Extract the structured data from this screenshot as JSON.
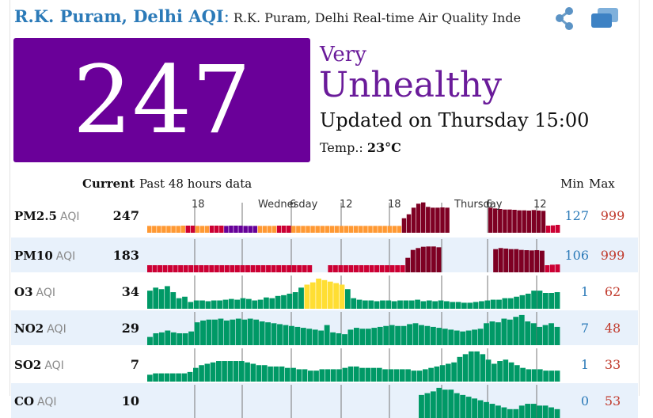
{
  "header": {
    "title": "R.K. Puram, Delhi AQI",
    "colon": ":",
    "subtitle": "R.K. Puram, Delhi Real-time Air Quality Index"
  },
  "icons": {
    "share": "share-icon",
    "window": "windows-icon"
  },
  "summary": {
    "aqi": "247",
    "level_line1": "Very",
    "level_line2": "Unhealthy",
    "updated": "Updated on Thursday 15:00",
    "temp_label": "Temp.:",
    "temp_value": "23°C",
    "box_color": "#6a0099"
  },
  "columns": {
    "current": "Current",
    "past": "Past 48 hours data",
    "min": "Min",
    "max": "Max"
  },
  "timeline": {
    "labels": [
      "18",
      "Wednesday",
      "6",
      "12",
      "18",
      "Thursday",
      "6",
      "12"
    ]
  },
  "colors": {
    "good": "#009966",
    "moderate": "#ffde33",
    "sensitive": "#ff9933",
    "unhealthy": "#cc0033",
    "very_unhealthy": "#660099",
    "hazardous": "#7e0023"
  },
  "pollutants": [
    {
      "name": "PM2.5",
      "unit": "AQI",
      "current": "247",
      "min": "127",
      "max": "999",
      "bars": [
        26,
        26,
        26,
        26,
        26,
        26,
        26,
        27,
        27,
        27,
        26,
        26,
        26,
        27,
        27,
        27,
        26,
        27,
        27,
        27,
        26,
        26,
        26,
        26,
        26,
        26,
        26,
        27,
        27,
        27,
        26,
        26,
        26,
        26,
        26,
        26,
        26,
        26,
        26,
        26,
        26,
        26,
        26,
        26,
        26,
        26,
        26,
        26,
        26,
        26,
        26,
        26,
        26,
        55,
        70,
        95,
        110,
        115,
        98,
        95,
        95,
        96,
        95,
        null,
        null,
        null,
        null,
        null,
        null,
        null,
        null,
        95,
        92,
        90,
        88,
        88,
        87,
        85,
        85,
        84,
        86,
        84,
        83,
        27,
        28,
        30
      ]
    },
    {
      "name": "PM10",
      "unit": "AQI",
      "current": "183",
      "min": "106",
      "max": "999",
      "bars": [
        27,
        27,
        27,
        27,
        27,
        27,
        27,
        27,
        27,
        27,
        27,
        27,
        27,
        27,
        27,
        27,
        27,
        27,
        27,
        27,
        27,
        27,
        27,
        27,
        27,
        27,
        27,
        27,
        27,
        27,
        27,
        27,
        null,
        null,
        null,
        27,
        27,
        27,
        27,
        27,
        27,
        27,
        27,
        27,
        27,
        27,
        27,
        27,
        27,
        27,
        55,
        85,
        92,
        97,
        98,
        98,
        95,
        null,
        null,
        null,
        null,
        null,
        null,
        null,
        null,
        null,
        null,
        88,
        92,
        90,
        88,
        88,
        85,
        84,
        83,
        84,
        82,
        27,
        29,
        30
      ]
    },
    {
      "name": "O3",
      "unit": "AQI",
      "current": "34",
      "min": "1",
      "max": "62",
      "bars": [
        24,
        28,
        26,
        30,
        22,
        14,
        16,
        9,
        11,
        11,
        10,
        11,
        11,
        12,
        13,
        12,
        14,
        13,
        11,
        12,
        15,
        14,
        17,
        18,
        20,
        22,
        28,
        32,
        35,
        40,
        38,
        36,
        34,
        32,
        26,
        14,
        12,
        11,
        11,
        10,
        11,
        11,
        10,
        11,
        11,
        11,
        12,
        10,
        11,
        10,
        11,
        10,
        9,
        9,
        8,
        8,
        9,
        10,
        11,
        12,
        12,
        14,
        14,
        16,
        18,
        20,
        24,
        24,
        21,
        21,
        22
      ]
    },
    {
      "name": "NO2",
      "unit": "AQI",
      "current": "29",
      "min": "7",
      "max": "48",
      "bars": [
        9,
        13,
        14,
        16,
        14,
        13,
        13,
        15,
        25,
        27,
        28,
        28,
        29,
        27,
        28,
        29,
        28,
        29,
        28,
        26,
        25,
        24,
        23,
        22,
        21,
        20,
        19,
        18,
        17,
        16,
        22,
        14,
        13,
        12,
        17,
        19,
        18,
        18,
        19,
        20,
        21,
        22,
        21,
        21,
        23,
        24,
        22,
        21,
        20,
        19,
        18,
        17,
        16,
        15,
        16,
        17,
        18,
        24,
        26,
        25,
        29,
        28,
        31,
        33,
        26,
        24,
        20,
        22,
        24,
        20
      ]
    },
    {
      "name": "SO2",
      "unit": "AQI",
      "current": "7",
      "min": "1",
      "max": "33",
      "bars": [
        5,
        6,
        6,
        6,
        6,
        6,
        6,
        7,
        10,
        12,
        13,
        14,
        15,
        15,
        15,
        15,
        15,
        14,
        13,
        12,
        12,
        11,
        11,
        11,
        10,
        10,
        9,
        9,
        8,
        8,
        9,
        9,
        9,
        9,
        10,
        11,
        11,
        10,
        10,
        10,
        10,
        9,
        9,
        9,
        9,
        9,
        8,
        8,
        9,
        10,
        11,
        12,
        13,
        14,
        18,
        20,
        22,
        22,
        20,
        16,
        13,
        15,
        16,
        14,
        12,
        10,
        9,
        9,
        9,
        8,
        8,
        8
      ]
    },
    {
      "name": "CO",
      "unit": "AQI",
      "current": "10",
      "min": "0",
      "max": "53",
      "bars": [
        null,
        null,
        null,
        null,
        null,
        null,
        null,
        null,
        null,
        null,
        null,
        null,
        null,
        null,
        null,
        null,
        null,
        null,
        null,
        null,
        null,
        null,
        null,
        null,
        null,
        null,
        null,
        null,
        null,
        null,
        null,
        null,
        null,
        null,
        null,
        null,
        null,
        null,
        null,
        null,
        null,
        null,
        null,
        null,
        null,
        null,
        13,
        14,
        15,
        17,
        16,
        16,
        14,
        13,
        12,
        11,
        10,
        9,
        8,
        7,
        6,
        5,
        5,
        7,
        8,
        8,
        7,
        7,
        6,
        5
      ]
    }
  ]
}
